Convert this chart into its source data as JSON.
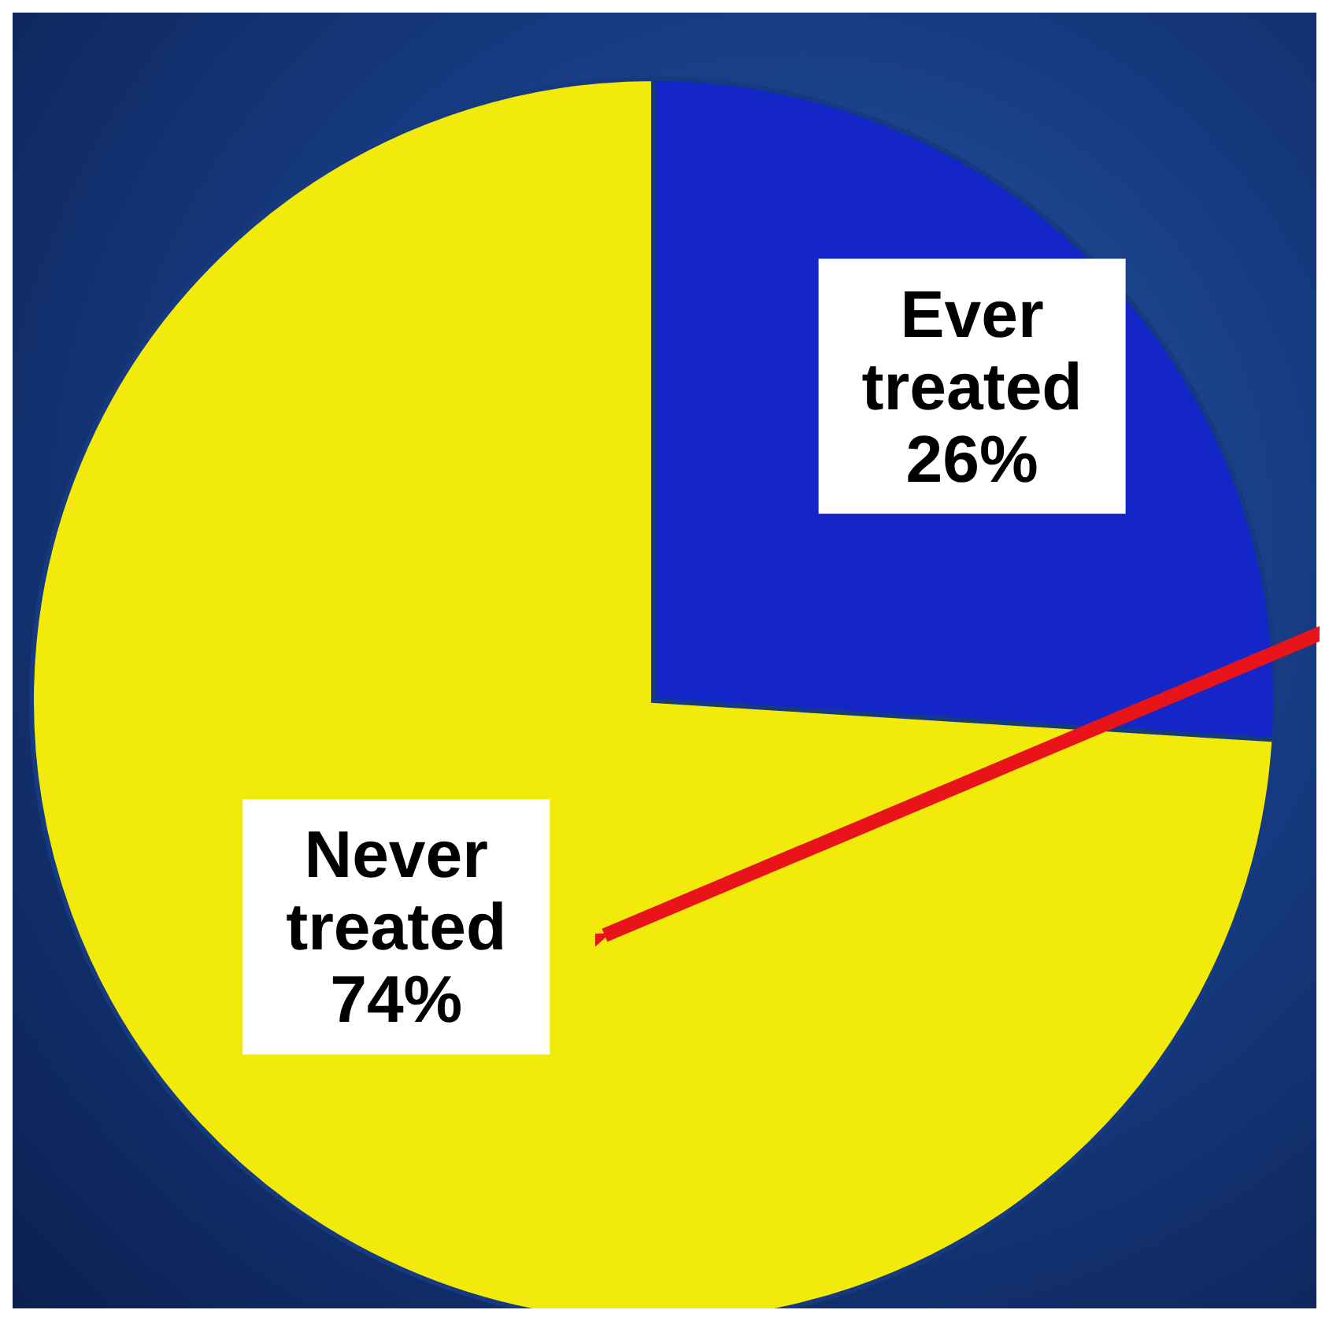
{
  "chart_data": {
    "type": "pie",
    "categories": [
      "Ever treated",
      "Never treated"
    ],
    "values": [
      26,
      74
    ],
    "colors": [
      "#1426c8",
      "#f2ea0a"
    ],
    "value_labels": [
      "26%",
      "74%"
    ],
    "legend": false
  }
}
